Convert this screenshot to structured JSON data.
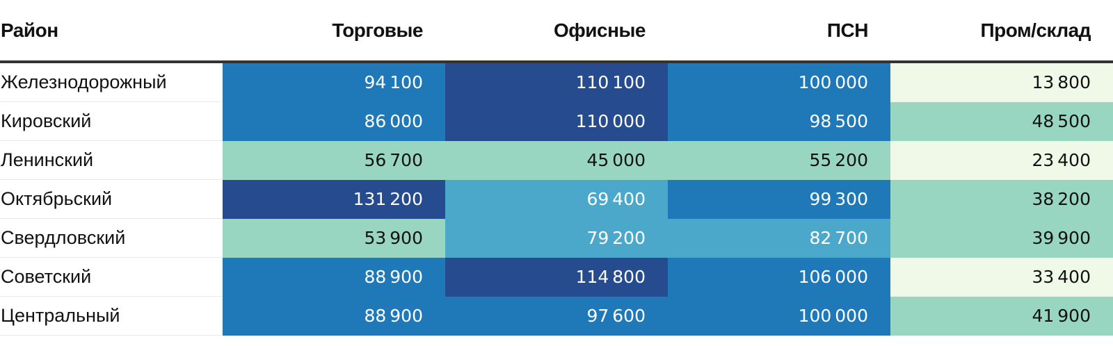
{
  "chart_data": {
    "type": "heatmap",
    "row_header": "Район",
    "columns": [
      "Торговые",
      "Офисные",
      "ПСН",
      "Пром/склад"
    ],
    "rows": [
      {
        "name": "Железнодорожный",
        "values": [
          94100,
          110100,
          100000,
          13800
        ]
      },
      {
        "name": "Кировский",
        "values": [
          86000,
          110000,
          98500,
          48500
        ]
      },
      {
        "name": "Ленинский",
        "values": [
          56700,
          45000,
          55200,
          23400
        ]
      },
      {
        "name": "Октябрьский",
        "values": [
          131200,
          69400,
          99300,
          38200
        ]
      },
      {
        "name": "Свердловский",
        "values": [
          53900,
          79200,
          82700,
          39900
        ]
      },
      {
        "name": "Советский",
        "values": [
          88900,
          114800,
          106000,
          33400
        ]
      },
      {
        "name": "Центральный",
        "values": [
          88900,
          97600,
          100000,
          41900
        ]
      }
    ],
    "color_scale": [
      {
        "max": 35000,
        "color": "#f0f9e8",
        "text": "#111111"
      },
      {
        "max": 60000,
        "color": "#99d6c2",
        "text": "#111111"
      },
      {
        "max": 85000,
        "color": "#4ba8cb",
        "text": "#ffffff"
      },
      {
        "max": 107000,
        "color": "#1f79b8",
        "text": "#ffffff"
      },
      {
        "max": 1000000,
        "color": "#264b8e",
        "text": "#ffffff"
      }
    ]
  }
}
